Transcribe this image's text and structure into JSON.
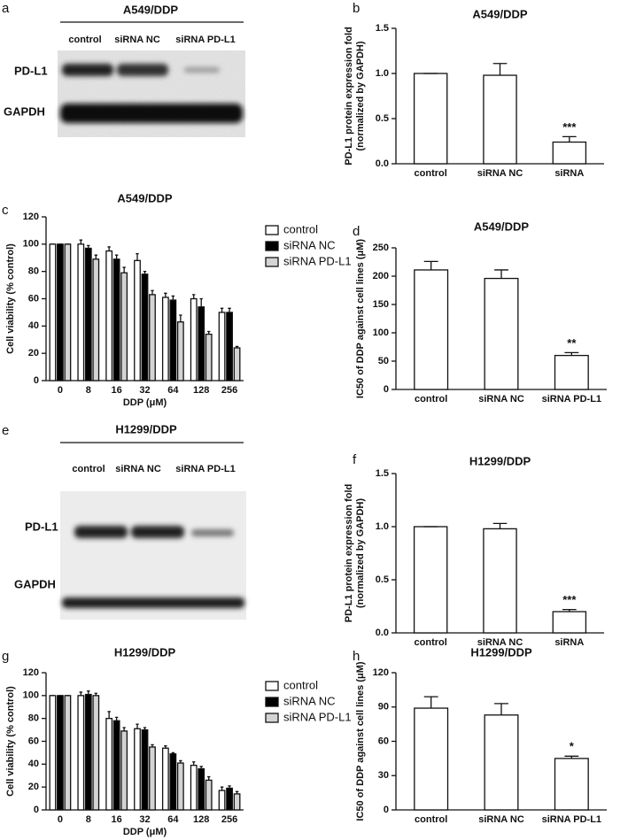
{
  "blots": [
    {
      "panel_label": "a",
      "title": "A549/DDP",
      "lanes": [
        "control",
        "siRNA NC",
        "siRNA PD-L1"
      ],
      "rows": [
        "PD-L1",
        "GAPDH"
      ]
    },
    {
      "panel_label": "e",
      "title": "H1299/DDP",
      "lanes": [
        "control",
        "siRNA NC",
        "siRNA PD-L1"
      ],
      "rows": [
        "PD-L1",
        "GAPDH"
      ]
    }
  ],
  "chart_data": [
    {
      "type": "bar",
      "panel_label": "b",
      "title": "A549/DDP",
      "ylabel": [
        "PD-L1 protein expression fold",
        "(normalized by GAPDH)"
      ],
      "categories": [
        "control",
        "siRNA NC",
        "siRNA"
      ],
      "values": [
        1.0,
        0.98,
        0.24
      ],
      "errors": [
        0,
        0.13,
        0.06
      ],
      "significance": [
        null,
        null,
        "***"
      ],
      "color": "#ffffff",
      "ylim": [
        0,
        1.5
      ],
      "yticks": [
        {
          "value": 0,
          "label": "0.0"
        },
        0.5,
        {
          "value": 1,
          "label": "1.0"
        },
        1.5
      ]
    },
    {
      "type": "bar",
      "panel_label": "c",
      "title": "A549/DDP",
      "xlabel": "DDP (μM)",
      "ylabel": [
        "Cell viability (% control)"
      ],
      "categories": [
        "0",
        "8",
        "16",
        "32",
        "64",
        "128",
        "256"
      ],
      "series": [
        {
          "name": "control",
          "color": "#ffffff",
          "values": [
            100,
            100,
            95,
            88,
            61,
            60,
            50
          ],
          "errors": [
            0,
            3,
            3,
            5,
            3,
            3,
            3
          ]
        },
        {
          "name": "siRNA NC",
          "color": "#000000",
          "values": [
            100,
            97,
            89,
            78,
            59,
            54,
            50
          ],
          "errors": [
            0,
            2,
            3,
            2,
            3,
            6,
            3
          ]
        },
        {
          "name": "siRNA PD-L1",
          "color": "#d4d4d4",
          "values": [
            100,
            89,
            79,
            63,
            43,
            34,
            24
          ],
          "errors": [
            0,
            3,
            4,
            3,
            5,
            2,
            1
          ]
        }
      ],
      "legend": "outside-right",
      "ylim": [
        0,
        120
      ],
      "yticks": [
        0,
        20,
        40,
        60,
        80,
        100,
        120
      ]
    },
    {
      "type": "bar",
      "panel_label": "d",
      "title": "A549/DDP",
      "ylabel": [
        "IC50 of DDP against cell lines (μM)"
      ],
      "categories": [
        "control",
        "siRNA NC",
        "siRNA PD-L1"
      ],
      "values": [
        211,
        196,
        60
      ],
      "errors": [
        15,
        15,
        5
      ],
      "significance": [
        null,
        null,
        "**"
      ],
      "color": "#ffffff",
      "ylim": [
        0,
        250
      ],
      "yticks": [
        0,
        50,
        100,
        150,
        200,
        250
      ]
    },
    {
      "type": "bar",
      "panel_label": "f",
      "title": "H1299/DDP",
      "ylabel": [
        "PD-L1 protein expression fold",
        "(normalized by GAPDH)"
      ],
      "categories": [
        "control",
        "siRNA NC",
        "siRNA"
      ],
      "values": [
        1.0,
        0.98,
        0.2
      ],
      "errors": [
        0,
        0.05,
        0.02
      ],
      "significance": [
        null,
        null,
        "***"
      ],
      "color": "#ffffff",
      "ylim": [
        0,
        1.5
      ],
      "yticks": [
        {
          "value": 0,
          "label": "0.0"
        },
        0.5,
        {
          "value": 1,
          "label": "1.0"
        },
        1.5
      ]
    },
    {
      "type": "bar",
      "panel_label": "g",
      "title": "H1299/DDP",
      "xlabel": "DDP (μM)",
      "ylabel": [
        "Cell viability (% control)"
      ],
      "categories": [
        "0",
        "8",
        "16",
        "32",
        "64",
        "128",
        "256"
      ],
      "series": [
        {
          "name": "control",
          "color": "#ffffff",
          "values": [
            100,
            100,
            80,
            71,
            54,
            39,
            17
          ],
          "errors": [
            0,
            3,
            6,
            4,
            2,
            3,
            3
          ]
        },
        {
          "name": "siRNA NC",
          "color": "#000000",
          "values": [
            100,
            101,
            78,
            70,
            49,
            36,
            19
          ],
          "errors": [
            0,
            3,
            3,
            2,
            1,
            2,
            2
          ]
        },
        {
          "name": "siRNA PD-L1",
          "color": "#d4d4d4",
          "values": [
            100,
            100,
            69,
            55,
            41,
            26,
            14
          ],
          "errors": [
            0,
            2,
            3,
            2,
            2,
            3,
            2
          ]
        }
      ],
      "legend": "outside-right",
      "ylim": [
        0,
        120
      ],
      "yticks": [
        0,
        20,
        40,
        60,
        80,
        100,
        120
      ]
    },
    {
      "type": "bar",
      "panel_label": "h",
      "title": "H1299/DDP",
      "ylabel": [
        "IC50 of DDP against cell lines (μM)"
      ],
      "categories": [
        "control",
        "siRNA NC",
        "siRNA PD-L1"
      ],
      "values": [
        89,
        83,
        45
      ],
      "errors": [
        10,
        10,
        2
      ],
      "significance": [
        null,
        null,
        "*"
      ],
      "color": "#ffffff",
      "ylim": [
        0,
        120
      ],
      "yticks": [
        0,
        30,
        60,
        90,
        120
      ]
    }
  ]
}
